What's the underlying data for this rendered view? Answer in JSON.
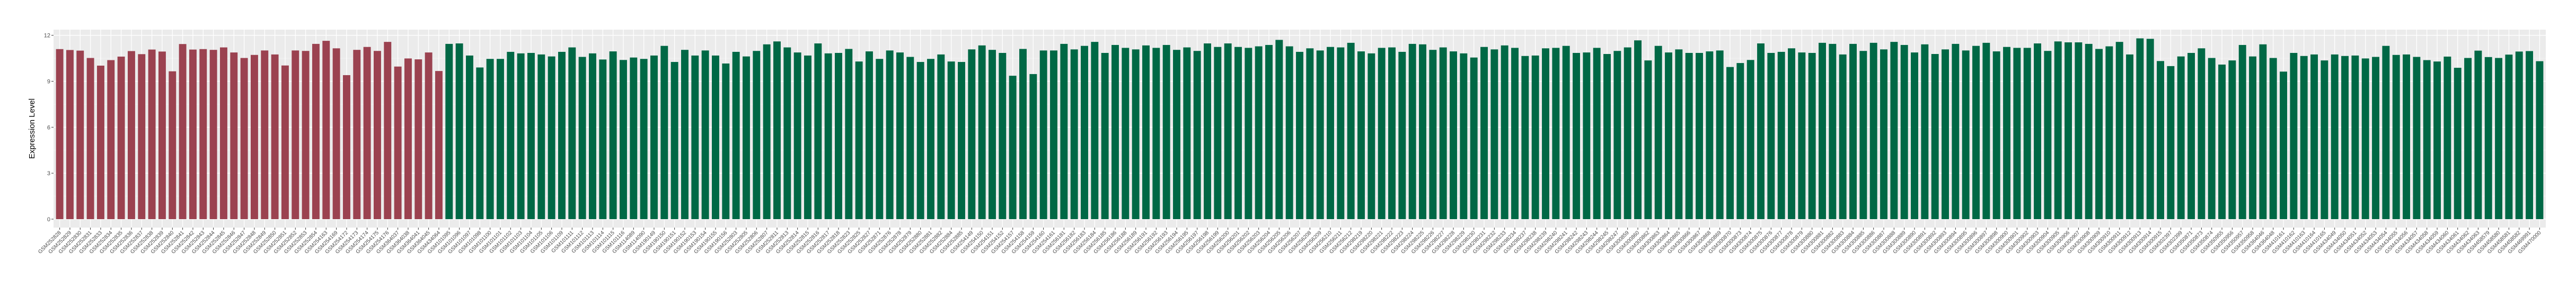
{
  "chart_data": {
    "type": "bar",
    "title": "",
    "xlabel": "",
    "ylabel": "Expression Level",
    "ylim": [
      0,
      12
    ],
    "yticks": [
      0,
      3,
      6,
      9,
      12
    ],
    "ytick_labels": [
      "0",
      "3",
      "6",
      "9",
      "12"
    ],
    "grid": true,
    "legend": "none",
    "panel_background": "#EBEBEB",
    "series": [
      {
        "color": "#9B4250",
        "categories": [
          "GSM252828",
          "GSM252829",
          "GSM252830",
          "GSM252831",
          "GSM252833",
          "GSM252834",
          "GSM252835",
          "GSM252836",
          "GSM252837",
          "GSM252838",
          "GSM252839",
          "GSM252840",
          "GSM252841",
          "GSM252842",
          "GSM252843",
          "GSM252844",
          "GSM252845",
          "GSM252846",
          "GSM252847",
          "GSM252848",
          "GSM252849",
          "GSM252850",
          "GSM252851",
          "GSM252852",
          "GSM252853",
          "GSM252854",
          "GSM254163",
          "GSM254169",
          "GSM254172",
          "GSM254173",
          "GSM254174",
          "GSM254175",
          "GSM254176",
          "GSM364037",
          "GSM364038",
          "GSM364041",
          "GSM364045",
          "GSM434064"
        ],
        "values": [
          11.1,
          11.04,
          11.0,
          10.52,
          10.02,
          10.38,
          10.61,
          10.97,
          10.77,
          11.07,
          10.94,
          9.65,
          11.43,
          11.07,
          11.1,
          11.05,
          11.21,
          10.88,
          10.52,
          10.72,
          11.01,
          10.75,
          10.03,
          11.01,
          10.98,
          11.44,
          11.64,
          11.15,
          9.4,
          11.05,
          11.24,
          10.98,
          11.57,
          9.96,
          10.49,
          10.43,
          10.88,
          9.67
        ]
      },
      {
        "color": "#006845",
        "categories": [
          "GSM101095",
          "GSM101096",
          "GSM101097",
          "GSM101098",
          "GSM101100",
          "GSM101101",
          "GSM101102",
          "GSM101103",
          "GSM101104",
          "GSM101105",
          "GSM101106",
          "GSM101109",
          "GSM101111",
          "GSM101112",
          "GSM101113",
          "GSM101114",
          "GSM101115",
          "GSM101116",
          "GSM114089",
          "GSM114090",
          "GSM190149",
          "GSM190150",
          "GSM190151",
          "GSM190152",
          "GSM190153",
          "GSM190154",
          "GSM190155",
          "GSM190156",
          "GSM252803",
          "GSM252805",
          "GSM252806",
          "GSM252807",
          "GSM252811",
          "GSM252813",
          "GSM252814",
          "GSM252815",
          "GSM252816",
          "GSM252817",
          "GSM252818",
          "GSM252823",
          "GSM252825",
          "GSM252827",
          "GSM252871",
          "GSM252876",
          "GSM252878",
          "GSM252879",
          "GSM252880",
          "GSM252881",
          "GSM252882",
          "GSM252884",
          "GSM252885",
          "GSM254149",
          "GSM254150",
          "GSM254151",
          "GSM254152",
          "GSM254157",
          "GSM254158",
          "GSM254159",
          "GSM254160",
          "GSM254161",
          "GSM256181",
          "GSM256182",
          "GSM256183",
          "GSM256184",
          "GSM256185",
          "GSM256186",
          "GSM256188",
          "GSM256189",
          "GSM256191",
          "GSM256192",
          "GSM256193",
          "GSM256194",
          "GSM256195",
          "GSM256197",
          "GSM256198",
          "GSM256199",
          "GSM256200",
          "GSM256201",
          "GSM256202",
          "GSM256203",
          "GSM256204",
          "GSM256205",
          "GSM256206",
          "GSM256207",
          "GSM256208",
          "GSM256209",
          "GSM256210",
          "GSM256211",
          "GSM256212",
          "GSM298219",
          "GSM298220",
          "GSM298221",
          "GSM298222",
          "GSM298223",
          "GSM298224",
          "GSM298225",
          "GSM298226",
          "GSM298227",
          "GSM298228",
          "GSM298229",
          "GSM298230",
          "GSM298231",
          "GSM298232",
          "GSM298233",
          "GSM298234",
          "GSM298237",
          "GSM298238",
          "GSM298239",
          "GSM298240",
          "GSM298241",
          "GSM298242",
          "GSM298243",
          "GSM298244",
          "GSM298245",
          "GSM298247",
          "GSM300859",
          "GSM300860",
          "GSM300862",
          "GSM300863",
          "GSM300864",
          "GSM300865",
          "GSM300866",
          "GSM300867",
          "GSM300868",
          "GSM300869",
          "GSM300870",
          "GSM300873",
          "GSM300874",
          "GSM300875",
          "GSM300876",
          "GSM300877",
          "GSM300878",
          "GSM300879",
          "GSM300880",
          "GSM300881",
          "GSM300882",
          "GSM300883",
          "GSM300884",
          "GSM300885",
          "GSM300886",
          "GSM300887",
          "GSM300888",
          "GSM300889",
          "GSM300890",
          "GSM300891",
          "GSM300892",
          "GSM300893",
          "GSM300894",
          "GSM300895",
          "GSM300896",
          "GSM300897",
          "GSM300898",
          "GSM300900",
          "GSM300901",
          "GSM300902",
          "GSM300903",
          "GSM300904",
          "GSM300905",
          "GSM300906",
          "GSM300907",
          "GSM300908",
          "GSM300909",
          "GSM300910",
          "GSM300911",
          "GSM300912",
          "GSM300913",
          "GSM300914",
          "GSM300915",
          "GSM302397",
          "GSM302399",
          "GSM350871",
          "GSM350873",
          "GSM350874",
          "GSM350955",
          "GSM350956",
          "GSM350957",
          "GSM350958",
          "GSM364046",
          "GSM364048",
          "GSM410161",
          "GSM410162",
          "GSM410163",
          "GSM410164",
          "GSM410165",
          "GSM434049",
          "GSM434050",
          "GSM434051",
          "GSM434052",
          "GSM434053",
          "GSM434054",
          "GSM434055",
          "GSM434056",
          "GSM434057",
          "GSM434058",
          "GSM434059",
          "GSM434060",
          "GSM434061",
          "GSM434062",
          "GSM434063",
          "GSM458579",
          "GSM458580",
          "GSM458581",
          "GSM458582",
          "GSM469991",
          "GSM470000"
        ],
        "values": [
          11.44,
          11.47,
          10.68,
          9.9,
          10.46,
          10.46,
          10.92,
          10.82,
          10.85,
          10.75,
          10.62,
          10.92,
          11.21,
          10.59,
          10.82,
          10.42,
          10.95,
          10.39,
          10.55,
          10.46,
          10.68,
          11.31,
          10.26,
          11.05,
          10.68,
          11.01,
          10.68,
          10.16,
          10.92,
          10.62,
          10.98,
          11.41,
          11.6,
          11.21,
          10.88,
          10.68,
          11.47,
          10.82,
          10.85,
          11.11,
          10.29,
          10.95,
          10.46,
          11.01,
          10.88,
          10.59,
          10.26,
          10.46,
          10.75,
          10.29,
          10.26,
          11.08,
          11.34,
          11.05,
          10.85,
          9.36,
          11.11,
          9.47,
          11.01,
          11.01,
          11.44,
          11.08,
          11.31,
          11.57,
          10.85,
          11.37,
          11.18,
          11.08,
          11.34,
          11.18,
          11.37,
          11.05,
          11.21,
          10.98,
          11.47,
          11.24,
          11.47,
          11.24,
          11.18,
          11.28,
          11.37,
          11.7,
          11.28,
          10.92,
          11.15,
          11.01,
          11.24,
          11.21,
          11.51,
          10.95,
          10.82,
          11.18,
          11.21,
          10.92,
          11.44,
          11.41,
          11.05,
          11.21,
          10.95,
          10.82,
          10.55,
          11.24,
          11.08,
          11.34,
          11.18,
          10.65,
          10.68,
          11.15,
          11.18,
          11.31,
          10.85,
          10.88,
          11.18,
          10.78,
          10.98,
          11.21,
          11.67,
          10.36,
          11.31,
          10.88,
          11.08,
          10.85,
          10.85,
          10.95,
          11.01,
          9.93,
          10.19,
          10.39,
          11.47,
          10.85,
          10.92,
          11.15,
          10.88,
          10.85,
          11.51,
          11.44,
          10.75,
          11.44,
          10.98,
          11.51,
          11.08,
          11.57,
          11.37,
          10.88,
          11.41,
          10.78,
          11.08,
          11.44,
          11.01,
          11.31,
          11.51,
          10.95,
          11.24,
          11.18,
          11.18,
          11.47,
          10.98,
          11.6,
          11.54,
          11.54,
          11.44,
          11.11,
          11.28,
          11.57,
          10.75,
          11.8,
          11.77,
          10.32,
          9.99,
          10.62,
          10.85,
          11.15,
          10.52,
          10.09,
          10.36,
          11.37,
          10.62,
          11.41,
          10.52,
          9.63,
          10.85,
          10.65,
          10.75,
          10.36,
          10.75,
          10.65,
          10.68,
          10.49,
          10.59,
          11.31,
          10.72,
          10.75,
          10.59,
          10.38,
          10.29,
          10.61,
          9.88,
          10.52,
          11.0,
          10.58,
          10.52,
          10.74,
          10.94,
          10.97,
          10.31
        ]
      }
    ]
  }
}
